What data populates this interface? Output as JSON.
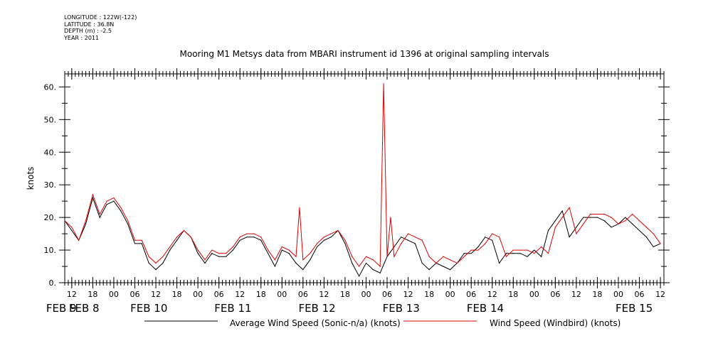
{
  "meta": {
    "longitude": "LONGITUDE : 122W(-122)",
    "latitude": "LATITUDE : 36.8N",
    "depth": "DEPTH (m) : -2.5",
    "year": "YEAR : 2011"
  },
  "chart_data": {
    "type": "line",
    "title": "Mooring M1 Metsys data from MBARI instrument id 1396 at original sampling intervals",
    "ylabel": "knots",
    "xlabel": "",
    "ylim": [
      0,
      64
    ],
    "xlim": [
      "2011-02-08T10:00",
      "2011-02-15T13:00"
    ],
    "yticks": [
      0,
      10,
      20,
      30,
      40,
      50,
      60
    ],
    "ytick_labels": [
      "0.",
      "10.",
      "20.",
      "30.",
      "40.",
      "50.",
      "60."
    ],
    "xticks_hour_labels": [
      "12",
      "18",
      "00",
      "06",
      "12",
      "18",
      "00",
      "06",
      "12",
      "18",
      "00",
      "06",
      "12",
      "18",
      "00",
      "06",
      "12",
      "18",
      "00",
      "06",
      "12",
      "18",
      "00",
      "06",
      "12",
      "18",
      "00",
      "06",
      "12"
    ],
    "xticks_day_labels": [
      "FEB  8",
      "FEB  9",
      "FEB 10",
      "FEB 11",
      "FEB 12",
      "FEB 13",
      "FEB 14",
      "FEB 15"
    ],
    "grid": false,
    "legend_position": "bottom",
    "series": [
      {
        "name": "Average Wind Speed (Sonic-n/a) (knots)",
        "color": "#000000",
        "x": [
          "2011-02-08T10:00",
          "2011-02-08T12:00",
          "2011-02-08T14:00",
          "2011-02-08T16:00",
          "2011-02-08T18:00",
          "2011-02-08T20:00",
          "2011-02-08T22:00",
          "2011-02-09T00:00",
          "2011-02-09T02:00",
          "2011-02-09T04:00",
          "2011-02-09T06:00",
          "2011-02-09T08:00",
          "2011-02-09T10:00",
          "2011-02-09T12:00",
          "2011-02-09T14:00",
          "2011-02-09T16:00",
          "2011-02-09T18:00",
          "2011-02-09T20:00",
          "2011-02-09T22:00",
          "2011-02-10T00:00",
          "2011-02-10T02:00",
          "2011-02-10T04:00",
          "2011-02-10T06:00",
          "2011-02-10T08:00",
          "2011-02-10T10:00",
          "2011-02-10T12:00",
          "2011-02-10T14:00",
          "2011-02-10T16:00",
          "2011-02-10T18:00",
          "2011-02-10T20:00",
          "2011-02-10T22:00",
          "2011-02-11T00:00",
          "2011-02-11T02:00",
          "2011-02-11T04:00",
          "2011-02-11T06:00",
          "2011-02-11T08:00",
          "2011-02-11T10:00",
          "2011-02-11T12:00",
          "2011-02-11T14:00",
          "2011-02-11T16:00",
          "2011-02-11T18:00",
          "2011-02-11T20:00",
          "2011-02-11T22:00",
          "2011-02-12T00:00",
          "2011-02-12T02:00",
          "2011-02-12T04:00",
          "2011-02-12T06:00",
          "2011-02-12T08:00",
          "2011-02-12T10:00",
          "2011-02-12T12:00",
          "2011-02-12T14:00",
          "2011-02-12T16:00",
          "2011-02-12T18:00",
          "2011-02-12T20:00",
          "2011-02-12T22:00",
          "2011-02-13T00:00",
          "2011-02-13T02:00",
          "2011-02-13T04:00",
          "2011-02-13T06:00",
          "2011-02-13T08:00",
          "2011-02-13T10:00",
          "2011-02-13T12:00",
          "2011-02-13T14:00",
          "2011-02-13T16:00",
          "2011-02-13T18:00",
          "2011-02-13T20:00",
          "2011-02-13T22:00",
          "2011-02-14T00:00",
          "2011-02-14T02:00",
          "2011-02-14T04:00",
          "2011-02-14T06:00",
          "2011-02-14T08:00",
          "2011-02-14T10:00",
          "2011-02-14T12:00",
          "2011-02-14T14:00",
          "2011-02-14T16:00",
          "2011-02-14T18:00",
          "2011-02-14T20:00",
          "2011-02-14T22:00",
          "2011-02-15T00:00",
          "2011-02-15T02:00",
          "2011-02-15T04:00",
          "2011-02-15T06:00",
          "2011-02-15T08:00",
          "2011-02-15T10:00",
          "2011-02-15T12:00"
        ],
        "values": [
          19,
          16,
          13,
          18,
          26,
          20,
          24,
          25,
          22,
          18,
          12,
          12,
          6,
          4,
          6,
          10,
          13,
          16,
          14,
          9,
          6,
          9,
          8,
          8,
          10,
          13,
          14,
          14,
          13,
          9,
          5,
          10,
          9,
          6,
          4,
          7,
          11,
          13,
          14,
          16,
          12,
          6,
          2,
          6,
          4,
          3,
          8,
          11,
          14,
          13,
          12,
          6,
          4,
          6,
          5,
          4,
          6,
          9,
          9,
          11,
          14,
          13,
          6,
          9,
          9,
          9,
          8,
          10,
          8,
          16,
          19,
          22,
          14,
          17,
          20,
          20,
          20,
          19,
          17,
          18,
          20,
          18,
          16,
          14,
          11,
          12
        ]
      },
      {
        "name": "Wind Speed (Windbird) (knots)",
        "color": "#dd0000",
        "x": [
          "2011-02-08T10:00",
          "2011-02-08T12:00",
          "2011-02-08T14:00",
          "2011-02-08T16:00",
          "2011-02-08T18:00",
          "2011-02-08T20:00",
          "2011-02-08T22:00",
          "2011-02-09T00:00",
          "2011-02-09T02:00",
          "2011-02-09T04:00",
          "2011-02-09T06:00",
          "2011-02-09T08:00",
          "2011-02-09T10:00",
          "2011-02-09T12:00",
          "2011-02-09T14:00",
          "2011-02-09T16:00",
          "2011-02-09T18:00",
          "2011-02-09T20:00",
          "2011-02-09T22:00",
          "2011-02-10T00:00",
          "2011-02-10T02:00",
          "2011-02-10T04:00",
          "2011-02-10T06:00",
          "2011-02-10T08:00",
          "2011-02-10T10:00",
          "2011-02-10T12:00",
          "2011-02-10T14:00",
          "2011-02-10T16:00",
          "2011-02-10T18:00",
          "2011-02-10T20:00",
          "2011-02-10T22:00",
          "2011-02-11T00:00",
          "2011-02-11T02:00",
          "2011-02-11T04:00",
          "2011-02-11T05:00",
          "2011-02-11T06:00",
          "2011-02-11T08:00",
          "2011-02-11T10:00",
          "2011-02-11T12:00",
          "2011-02-11T14:00",
          "2011-02-11T16:00",
          "2011-02-11T18:00",
          "2011-02-11T20:00",
          "2011-02-11T22:00",
          "2011-02-12T00:00",
          "2011-02-12T02:00",
          "2011-02-12T04:00",
          "2011-02-12T05:00",
          "2011-02-12T06:00",
          "2011-02-12T07:00",
          "2011-02-12T08:00",
          "2011-02-12T10:00",
          "2011-02-12T12:00",
          "2011-02-12T14:00",
          "2011-02-12T16:00",
          "2011-02-12T18:00",
          "2011-02-12T20:00",
          "2011-02-12T22:00",
          "2011-02-13T00:00",
          "2011-02-13T02:00",
          "2011-02-13T04:00",
          "2011-02-13T06:00",
          "2011-02-13T08:00",
          "2011-02-13T10:00",
          "2011-02-13T12:00",
          "2011-02-13T14:00",
          "2011-02-13T16:00",
          "2011-02-13T18:00",
          "2011-02-13T20:00",
          "2011-02-13T22:00",
          "2011-02-14T00:00",
          "2011-02-14T02:00",
          "2011-02-14T04:00",
          "2011-02-14T06:00",
          "2011-02-14T08:00",
          "2011-02-14T10:00",
          "2011-02-14T12:00",
          "2011-02-14T14:00",
          "2011-02-14T16:00",
          "2011-02-14T18:00",
          "2011-02-14T20:00",
          "2011-02-14T22:00",
          "2011-02-15T00:00",
          "2011-02-15T02:00",
          "2011-02-15T04:00",
          "2011-02-15T06:00",
          "2011-02-15T08:00",
          "2011-02-15T10:00",
          "2011-02-15T12:00"
        ],
        "values": [
          19,
          17,
          13,
          19,
          27,
          21,
          25,
          26,
          23,
          19,
          13,
          13,
          8,
          6,
          8,
          11,
          14,
          16,
          14,
          10,
          7,
          10,
          9,
          9,
          11,
          14,
          15,
          15,
          14,
          10,
          7,
          11,
          10,
          8,
          23,
          7,
          9,
          12,
          14,
          15,
          16,
          13,
          8,
          5,
          8,
          7,
          5,
          61,
          8,
          20,
          8,
          12,
          15,
          14,
          13,
          8,
          6,
          8,
          7,
          6,
          8,
          10,
          10,
          12,
          15,
          14,
          8,
          10,
          10,
          10,
          9,
          11,
          9,
          17,
          20,
          23,
          15,
          18,
          21,
          21,
          21,
          20,
          18,
          19,
          21,
          19,
          17,
          15,
          12
        ]
      }
    ]
  }
}
